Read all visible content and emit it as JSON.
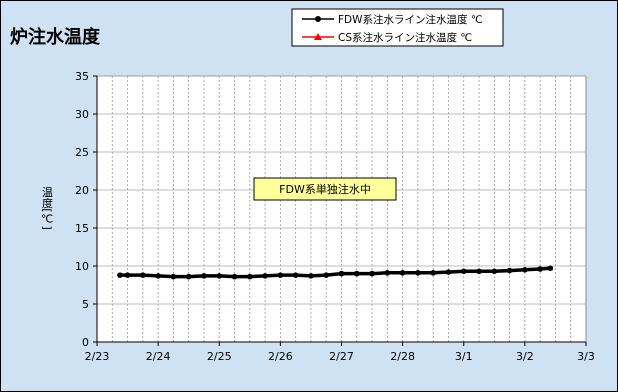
{
  "chart_data": {
    "type": "line",
    "title": "炉注水温度",
    "ylabel": "温度[℃]",
    "ylim": [
      0,
      35
    ],
    "yticks": [
      0,
      5,
      10,
      15,
      20,
      25,
      30,
      35
    ],
    "x_ticks": [
      "2/23",
      "2/24",
      "2/25",
      "2/26",
      "2/27",
      "2/28",
      "3/1",
      "3/2",
      "3/3"
    ],
    "grid": true,
    "legend": "top-center",
    "colors": {
      "chart_background": "#cfe2f3",
      "plot_background": "#ffffff",
      "annotation_fill": "#ffff99"
    },
    "series": [
      {
        "name": "FDW系注水ライン注水温度 ℃",
        "color": "#000000",
        "marker": "circle",
        "points": [
          {
            "x": "2/23 09:00",
            "y": 8.8
          },
          {
            "x": "2/23 12:00",
            "y": 8.8
          },
          {
            "x": "2/23 18:00",
            "y": 8.8
          },
          {
            "x": "2/24 00:00",
            "y": 8.7
          },
          {
            "x": "2/24 06:00",
            "y": 8.6
          },
          {
            "x": "2/24 12:00",
            "y": 8.6
          },
          {
            "x": "2/24 18:00",
            "y": 8.7
          },
          {
            "x": "2/25 00:00",
            "y": 8.7
          },
          {
            "x": "2/25 06:00",
            "y": 8.6
          },
          {
            "x": "2/25 12:00",
            "y": 8.6
          },
          {
            "x": "2/25 18:00",
            "y": 8.7
          },
          {
            "x": "2/26 00:00",
            "y": 8.8
          },
          {
            "x": "2/26 06:00",
            "y": 8.8
          },
          {
            "x": "2/26 12:00",
            "y": 8.7
          },
          {
            "x": "2/26 18:00",
            "y": 8.8
          },
          {
            "x": "2/27 00:00",
            "y": 9.0
          },
          {
            "x": "2/27 06:00",
            "y": 9.0
          },
          {
            "x": "2/27 12:00",
            "y": 9.0
          },
          {
            "x": "2/27 18:00",
            "y": 9.1
          },
          {
            "x": "2/28 00:00",
            "y": 9.1
          },
          {
            "x": "2/28 06:00",
            "y": 9.1
          },
          {
            "x": "2/28 12:00",
            "y": 9.1
          },
          {
            "x": "2/28 18:00",
            "y": 9.2
          },
          {
            "x": "3/1 00:00",
            "y": 9.3
          },
          {
            "x": "3/1 06:00",
            "y": 9.3
          },
          {
            "x": "3/1 12:00",
            "y": 9.3
          },
          {
            "x": "3/1 18:00",
            "y": 9.4
          },
          {
            "x": "3/2 00:00",
            "y": 9.5
          },
          {
            "x": "3/2 06:00",
            "y": 9.6
          },
          {
            "x": "3/2 10:00",
            "y": 9.7
          }
        ]
      },
      {
        "name": "CS系注水ライン注水温度 ℃",
        "color": "#ff0000",
        "marker": "triangle",
        "points": []
      }
    ],
    "annotations": [
      {
        "text": "FDW系単独注水中"
      }
    ]
  }
}
